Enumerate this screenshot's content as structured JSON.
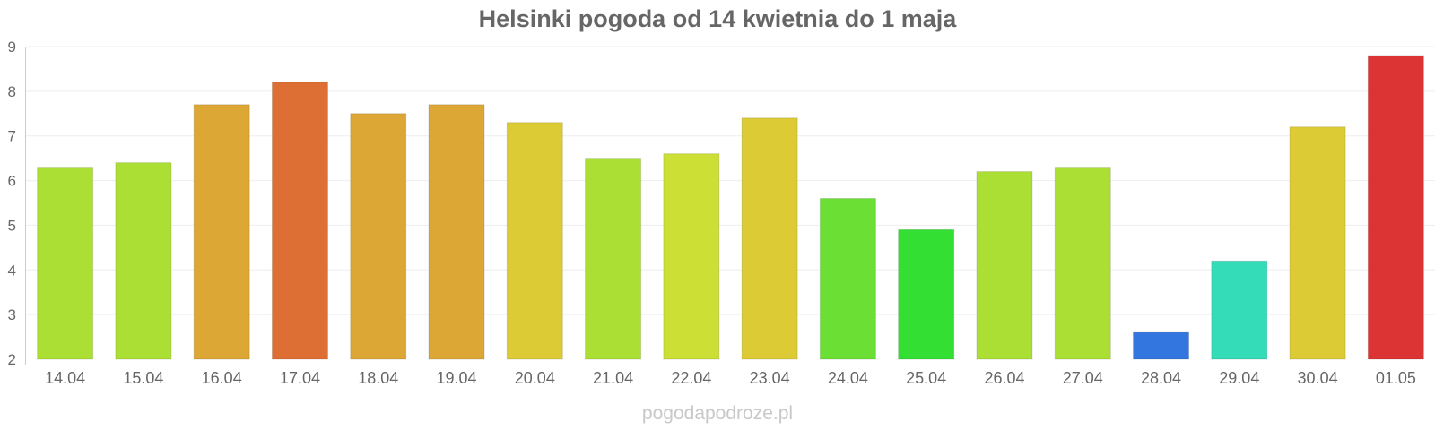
{
  "chart_data": {
    "type": "bar",
    "title": "Helsinki pogoda od 14 kwietnia do 1 maja",
    "categories": [
      "14.04",
      "15.04",
      "16.04",
      "17.04",
      "18.04",
      "19.04",
      "20.04",
      "21.04",
      "22.04",
      "23.04",
      "24.04",
      "25.04",
      "26.04",
      "27.04",
      "28.04",
      "29.04",
      "30.04",
      "01.05"
    ],
    "values": [
      6.3,
      6.4,
      7.7,
      8.2,
      7.5,
      7.7,
      7.3,
      6.5,
      6.6,
      7.4,
      5.6,
      4.9,
      6.2,
      6.3,
      2.6,
      4.2,
      7.2,
      8.8
    ],
    "colors": [
      "#acdf34",
      "#acdf34",
      "#dca734",
      "#de6f34",
      "#dca734",
      "#dca734",
      "#dccb34",
      "#acdf34",
      "#ccdf34",
      "#dccb34",
      "#6cdf34",
      "#34df34",
      "#acdf34",
      "#acdf34",
      "#3476df",
      "#34dcb8",
      "#dccb34",
      "#dc3434"
    ],
    "ylim": [
      2,
      9
    ],
    "yticks": [
      2,
      3,
      4,
      5,
      6,
      7,
      8,
      9
    ],
    "grid": true,
    "xlabel": "",
    "ylabel": ""
  },
  "watermark": "pogodapodroze.pl"
}
